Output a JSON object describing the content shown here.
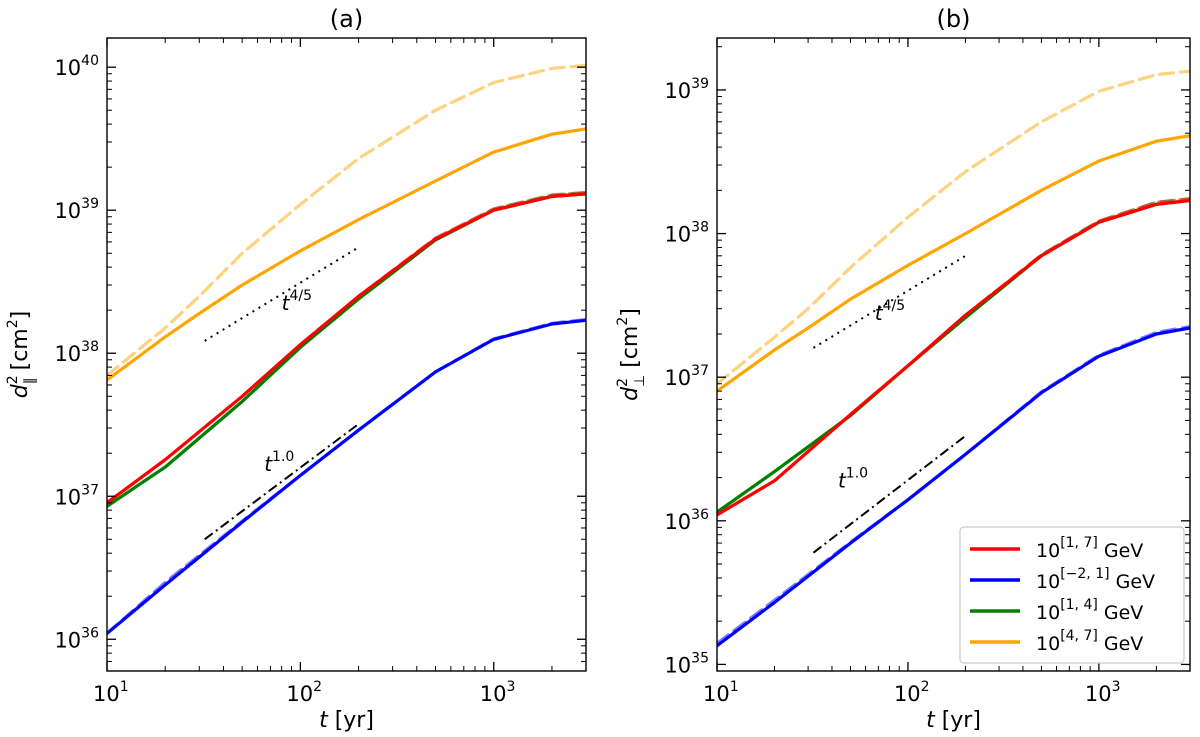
{
  "chart_data": [
    {
      "panel": "a",
      "type": "line",
      "title": "(a)",
      "xlabel_var": "t",
      "xlabel_unit": " [yr]",
      "ylabel_var": "d",
      "ylabel_sup": "2",
      "ylabel_sub": "∥",
      "ylabel_unit": " [cm",
      "ylabel_unit_sup": "2",
      "ylabel_unit_close": "]",
      "xscale": "log",
      "yscale": "log",
      "xlim": [
        10,
        3000
      ],
      "ylim": [
        6e+35,
        1.6e+40
      ],
      "xticks": [
        {
          "base": "10",
          "exp": "1",
          "value": 10
        },
        {
          "base": "10",
          "exp": "2",
          "value": 100
        },
        {
          "base": "10",
          "exp": "3",
          "value": 1000
        }
      ],
      "yticks": [
        {
          "base": "10",
          "exp": "36",
          "value": 1e+36
        },
        {
          "base": "10",
          "exp": "37",
          "value": 1e+37
        },
        {
          "base": "10",
          "exp": "38",
          "value": 1e+38
        },
        {
          "base": "10",
          "exp": "39",
          "value": 1e+39
        },
        {
          "base": "10",
          "exp": "40",
          "value": 1e+40
        }
      ],
      "series": [
        {
          "key": "s1",
          "style": "solid",
          "color": "#ff0000",
          "x": [
            10,
            20,
            50,
            100,
            200,
            500,
            1000,
            2000,
            3000
          ],
          "y": [
            9e+36,
            1.8e+37,
            5e+37,
            1.15e+38,
            2.5e+38,
            6.3e+38,
            1e+39,
            1.25e+39,
            1.3e+39
          ]
        },
        {
          "key": "s1d",
          "style": "dashed",
          "color": "#ff0000",
          "x": [
            10,
            20,
            50,
            100,
            200,
            500,
            1000,
            2000,
            3000
          ],
          "y": [
            9e+36,
            1.8e+37,
            5e+37,
            1.15e+38,
            2.5e+38,
            6.4e+38,
            1.02e+39,
            1.27e+39,
            1.33e+39
          ]
        },
        {
          "key": "s2",
          "style": "solid",
          "color": "#0000ff",
          "x": [
            10,
            20,
            50,
            100,
            200,
            500,
            1000,
            2000,
            3000
          ],
          "y": [
            1.1e+36,
            2.4e+36,
            6.6e+36,
            1.4e+37,
            2.9e+37,
            7.4e+37,
            1.25e+38,
            1.6e+38,
            1.7e+38
          ]
        },
        {
          "key": "s2d",
          "style": "dashed",
          "color": "#0000ff",
          "x": [
            10,
            20,
            50,
            100,
            200,
            500,
            1000,
            2000,
            3000
          ],
          "y": [
            1.1e+36,
            2.5e+36,
            6.7e+36,
            1.4e+37,
            2.9e+37,
            7.4e+37,
            1.26e+38,
            1.62e+38,
            1.72e+38
          ]
        },
        {
          "key": "s3",
          "style": "solid",
          "color": "#008000",
          "x": [
            10,
            20,
            50,
            100,
            200,
            500,
            1000,
            2000,
            3000
          ],
          "y": [
            8.5e+36,
            1.6e+37,
            4.6e+37,
            1.1e+38,
            2.4e+38,
            6.2e+38,
            1e+39,
            1.25e+39,
            1.3e+39
          ]
        },
        {
          "key": "s3d",
          "style": "dashed",
          "color": "#008000",
          "x": [
            10,
            20,
            50,
            100,
            200,
            500,
            1000,
            2000,
            3000
          ],
          "y": [
            8.5e+36,
            1.6e+37,
            4.6e+37,
            1.1e+38,
            2.4e+38,
            6.3e+38,
            1.02e+39,
            1.28e+39,
            1.33e+39
          ]
        },
        {
          "key": "s4",
          "style": "solid",
          "color": "#ffa500",
          "x": [
            10,
            20,
            30,
            50,
            100,
            200,
            500,
            1000,
            2000,
            3000
          ],
          "y": [
            6.5e+37,
            1.3e+38,
            1.9e+38,
            3e+38,
            5.2e+38,
            8.6e+38,
            1.6e+39,
            2.55e+39,
            3.4e+39,
            3.7e+39
          ]
        },
        {
          "key": "s4d",
          "style": "dashed",
          "color": "#ffa500",
          "x": [
            10,
            20,
            30,
            50,
            100,
            200,
            500,
            1000,
            2000,
            3000
          ],
          "y": [
            7e+37,
            1.5e+38,
            2.5e+38,
            5e+38,
            1.1e+39,
            2.3e+39,
            5e+39,
            7.8e+39,
            9.8e+39,
            1.03e+40
          ]
        }
      ],
      "guides": [
        {
          "style": "dotted",
          "x": [
            32,
            200
          ],
          "y": [
            1.22e+38,
            5.5e+38
          ],
          "label_var": "t",
          "label_exp": "4/5",
          "label_x": 80,
          "label_y": 2e+38
        },
        {
          "style": "dashdot",
          "x": [
            32,
            200
          ],
          "y": [
            5e+36,
            3.2e+37
          ],
          "label_var": "t",
          "label_exp": "1.0",
          "label_x": 65,
          "label_y": 1.5e+37
        }
      ]
    },
    {
      "panel": "b",
      "type": "line",
      "title": "(b)",
      "xlabel_var": "t",
      "xlabel_unit": " [yr]",
      "ylabel_var": "d",
      "ylabel_sup": "2",
      "ylabel_sub": "⊥",
      "ylabel_unit": " [cm",
      "ylabel_unit_sup": "2",
      "ylabel_unit_close": "]",
      "xscale": "log",
      "yscale": "log",
      "xlim": [
        10,
        3000
      ],
      "ylim": [
        9e+34,
        2.3e+39
      ],
      "xticks": [
        {
          "base": "10",
          "exp": "1",
          "value": 10
        },
        {
          "base": "10",
          "exp": "2",
          "value": 100
        },
        {
          "base": "10",
          "exp": "3",
          "value": 1000
        }
      ],
      "yticks": [
        {
          "base": "10",
          "exp": "35",
          "value": 1e+35
        },
        {
          "base": "10",
          "exp": "36",
          "value": 1e+36
        },
        {
          "base": "10",
          "exp": "37",
          "value": 1e+37
        },
        {
          "base": "10",
          "exp": "38",
          "value": 1e+38
        },
        {
          "base": "10",
          "exp": "39",
          "value": 1e+39
        }
      ],
      "series": [
        {
          "key": "s1",
          "style": "solid",
          "color": "#ff0000",
          "x": [
            10,
            20,
            50,
            100,
            200,
            500,
            1000,
            2000,
            3000
          ],
          "y": [
            1.1e+36,
            1.9e+36,
            5.5e+36,
            1.2e+37,
            2.7e+37,
            7e+37,
            1.2e+38,
            1.6e+38,
            1.7e+38
          ]
        },
        {
          "key": "s1d",
          "style": "dashed",
          "color": "#ff0000",
          "x": [
            10,
            20,
            50,
            100,
            200,
            500,
            1000,
            2000,
            3000
          ],
          "y": [
            1.1e+36,
            1.9e+36,
            5.5e+36,
            1.2e+37,
            2.7e+37,
            7.1e+37,
            1.22e+38,
            1.65e+38,
            1.75e+38
          ]
        },
        {
          "key": "s2",
          "style": "solid",
          "color": "#0000ff",
          "x": [
            10,
            20,
            50,
            100,
            200,
            500,
            1000,
            2000,
            3000
          ],
          "y": [
            1.35e+35,
            2.7e+35,
            7e+35,
            1.4e+36,
            2.9e+36,
            7.8e+36,
            1.4e+37,
            2e+37,
            2.2e+37
          ]
        },
        {
          "key": "s2d",
          "style": "dashed",
          "color": "#0000ff",
          "x": [
            10,
            20,
            50,
            100,
            200,
            500,
            1000,
            2000,
            3000
          ],
          "y": [
            1.4e+35,
            2.8e+35,
            7.1e+35,
            1.4e+36,
            2.9e+36,
            7.9e+36,
            1.42e+37,
            2.05e+37,
            2.25e+37
          ]
        },
        {
          "key": "s3",
          "style": "solid",
          "color": "#008000",
          "x": [
            10,
            20,
            50,
            100,
            200,
            500,
            1000,
            2000,
            3000
          ],
          "y": [
            1.15e+36,
            2.2e+36,
            5.4e+36,
            1.2e+37,
            2.6e+37,
            7e+37,
            1.2e+38,
            1.6e+38,
            1.7e+38
          ]
        },
        {
          "key": "s3d",
          "style": "dashed",
          "color": "#008000",
          "x": [
            10,
            20,
            50,
            100,
            200,
            500,
            1000,
            2000,
            3000
          ],
          "y": [
            1.15e+36,
            2.2e+36,
            5.4e+36,
            1.2e+37,
            2.6e+37,
            7.1e+37,
            1.22e+38,
            1.65e+38,
            1.75e+38
          ]
        },
        {
          "key": "s4",
          "style": "solid",
          "color": "#ffa500",
          "x": [
            10,
            20,
            30,
            50,
            100,
            200,
            500,
            1000,
            2000,
            3000
          ],
          "y": [
            8e+36,
            1.55e+37,
            2.2e+37,
            3.5e+37,
            6e+37,
            1e+38,
            2e+38,
            3.2e+38,
            4.4e+38,
            4.8e+38
          ]
        },
        {
          "key": "s4d",
          "style": "dashed",
          "color": "#ffa500",
          "x": [
            10,
            20,
            30,
            50,
            100,
            200,
            500,
            1000,
            2000,
            3000
          ],
          "y": [
            9e+36,
            1.9e+37,
            3e+37,
            5.8e+37,
            1.3e+38,
            2.7e+38,
            6e+38,
            9.8e+38,
            1.28e+39,
            1.35e+39
          ]
        }
      ],
      "guides": [
        {
          "style": "dotted",
          "x": [
            32,
            200
          ],
          "y": [
            1.6e+37,
            7e+37
          ],
          "label_var": "t",
          "label_exp": "4/5",
          "label_x": 67,
          "label_y": 2.5e+37
        },
        {
          "style": "dashdot",
          "x": [
            32,
            200
          ],
          "y": [
            6e+35,
            3.9e+36
          ],
          "label_var": "t",
          "label_exp": "1.0",
          "label_x": 43,
          "label_y": 1.7e+36
        }
      ]
    }
  ],
  "legend": {
    "placement": "lower right of panel (b)",
    "entries": [
      {
        "key": "s1",
        "color": "#ff0000",
        "base": "10",
        "exp": "[1, 7]",
        "unit": " GeV"
      },
      {
        "key": "s2",
        "color": "#0000ff",
        "base": "10",
        "exp": "[−2, 1]",
        "unit": " GeV"
      },
      {
        "key": "s3",
        "color": "#008000",
        "base": "10",
        "exp": "[1, 4]",
        "unit": " GeV"
      },
      {
        "key": "s4",
        "color": "#ffa500",
        "base": "10",
        "exp": "[4, 7]",
        "unit": " GeV"
      }
    ]
  }
}
